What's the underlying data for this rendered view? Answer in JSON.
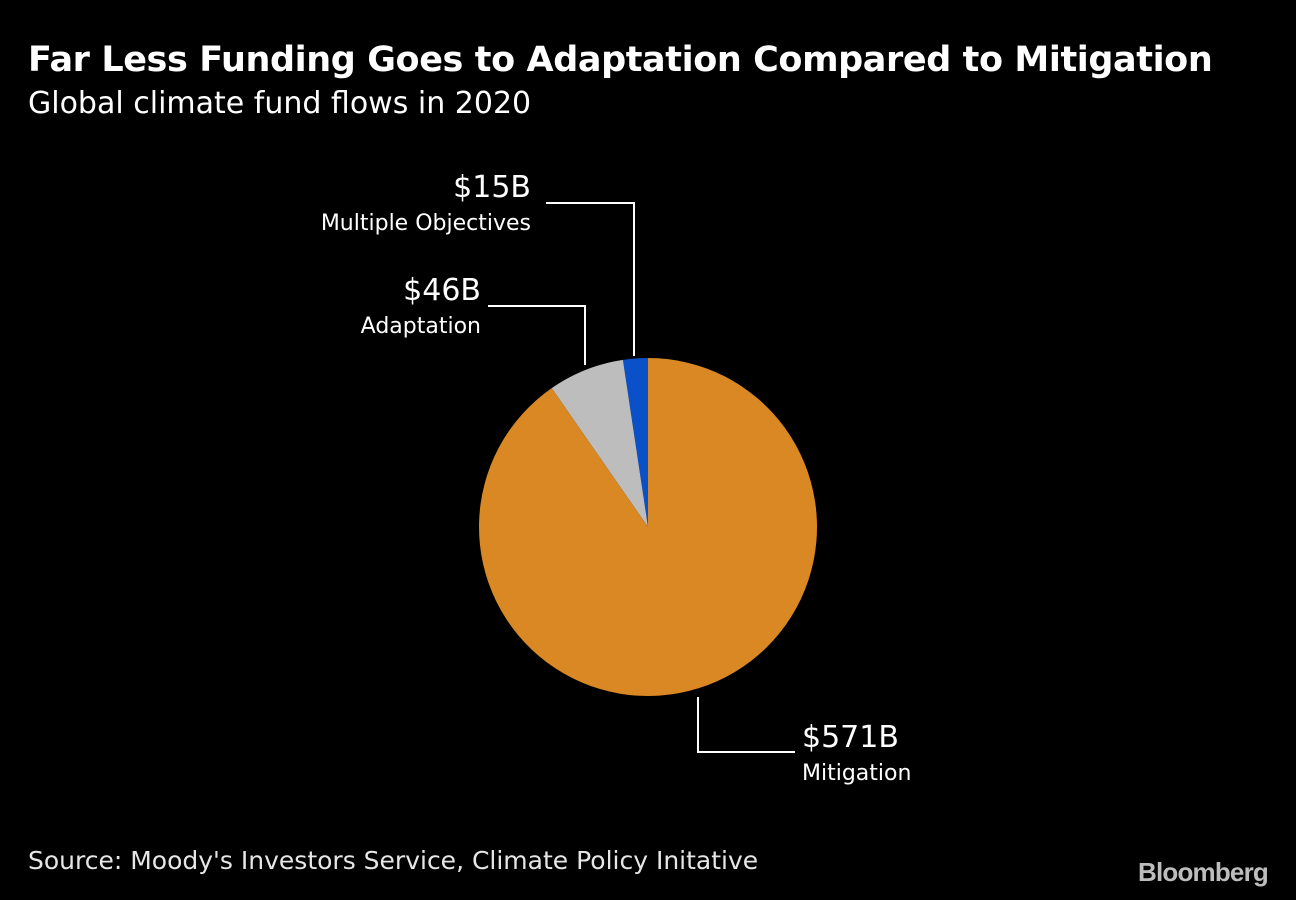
{
  "header": {
    "title": "Far Less Funding Goes to Adaptation Compared to Mitigation",
    "subtitle": "Global climate fund flows in 2020"
  },
  "footer": {
    "source": "Source: Moody's Investors Service, Climate Policy Initative",
    "brand": "Bloomberg"
  },
  "colors": {
    "background": "#000000",
    "text": "#ffffff"
  },
  "chart_data": {
    "type": "pie",
    "title": "Far Less Funding Goes to Adaptation Compared to Mitigation",
    "subtitle": "Global climate fund flows in 2020",
    "slices": [
      {
        "label": "Multiple Objectives",
        "value": 15,
        "value_label": "$15B",
        "color": "#0a50c8"
      },
      {
        "label": "Adaptation",
        "value": 46,
        "value_label": "$46B",
        "color": "#bdbdbd"
      },
      {
        "label": "Mitigation",
        "value": 571,
        "value_label": "$571B",
        "color": "#d98823"
      }
    ],
    "start": "12 o'clock",
    "direction": "counterclockwise"
  }
}
